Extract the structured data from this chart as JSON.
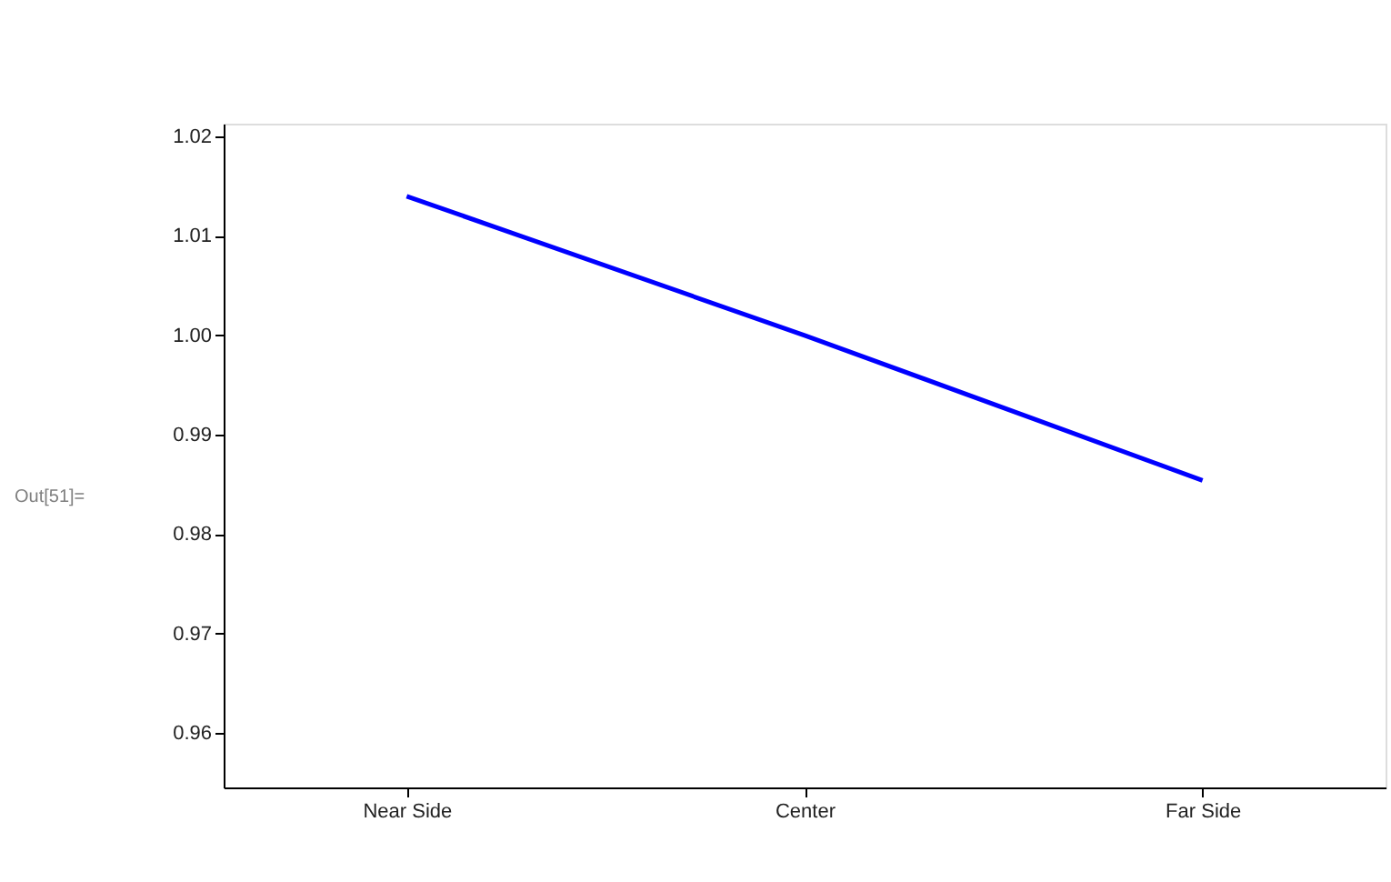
{
  "chart_data": {
    "type": "line",
    "categories": [
      "Near Side",
      "Center",
      "Far Side"
    ],
    "series": [
      {
        "color": "#0000ff",
        "values": [
          1.014,
          1.0,
          0.9854
        ]
      }
    ],
    "ylim": [
      0.9545,
      1.0213
    ],
    "yticks": [
      0.96,
      0.97,
      0.98,
      0.99,
      {
        "value": 1.0,
        "label": "1.00"
      },
      1.01,
      1.02
    ],
    "grid": false,
    "marker": "none",
    "line_style": "solid",
    "annotations": [
      "Out[51]="
    ]
  }
}
